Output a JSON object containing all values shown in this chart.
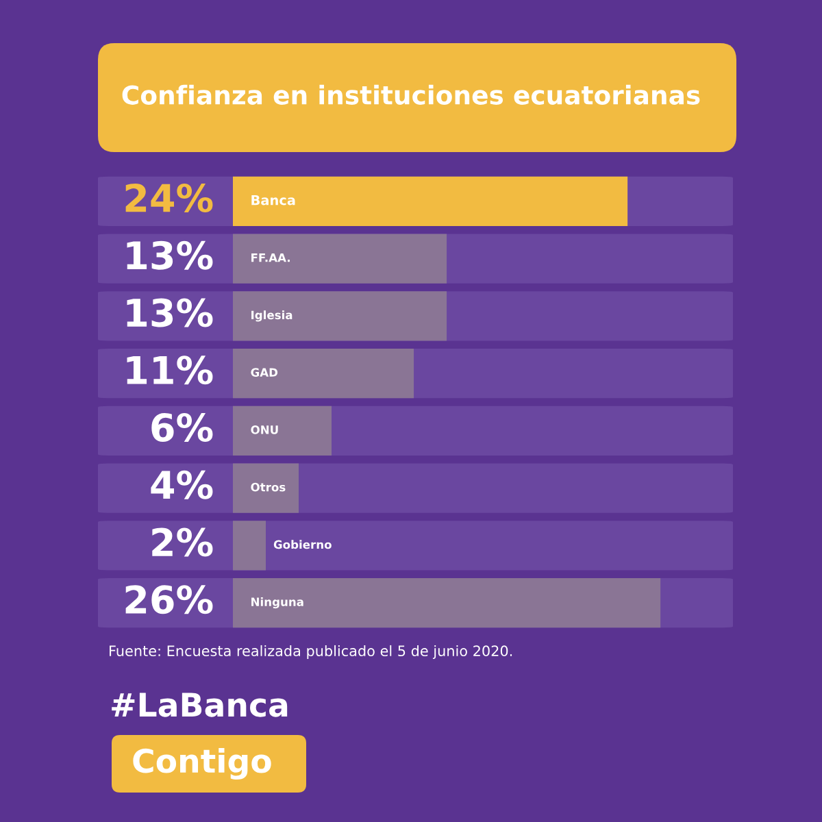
{
  "chart_data": {
    "type": "bar",
    "orientation": "horizontal",
    "title": "Confianza en instituciones ecuatorianas",
    "categories": [
      "Banca",
      "FF.AA.",
      "Iglesia",
      "GAD",
      "ONU",
      "Otros",
      "Gobierno",
      "Ninguna"
    ],
    "values": [
      24,
      13,
      13,
      11,
      6,
      4,
      2,
      26
    ],
    "colors": [
      "#f2bb41",
      "#8a7595",
      "#8a7595",
      "#8a7595",
      "#8a7595",
      "#8a7595",
      "#8a7595",
      "#8a7595"
    ],
    "value_labels": [
      "24%",
      "13%",
      "13%",
      "11%",
      "6%",
      "4%",
      "2%",
      "26%"
    ],
    "tick_labels": "y",
    "annotations": [
      "Fuente: Encuesta realizada publicado el 5 de junio 2020.",
      "#LaBanca",
      "Contigo"
    ]
  }
}
